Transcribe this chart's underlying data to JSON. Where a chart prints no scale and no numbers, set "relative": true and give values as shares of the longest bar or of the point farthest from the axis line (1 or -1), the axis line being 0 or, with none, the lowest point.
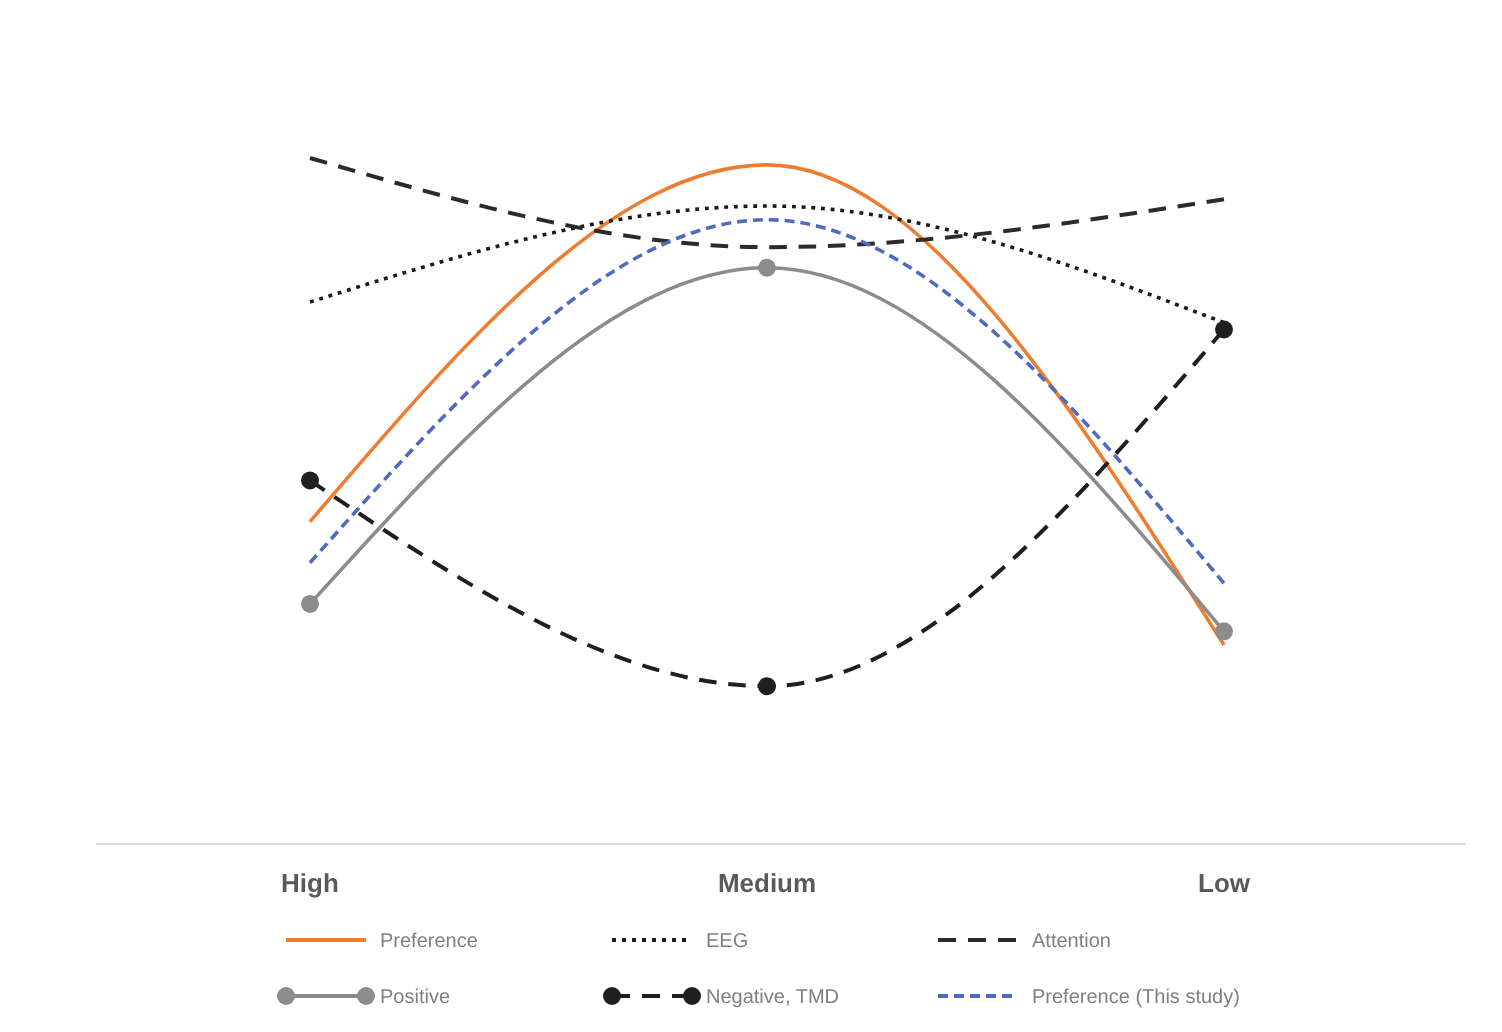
{
  "chart_data": {
    "type": "line",
    "relative": true,
    "categories": [
      "High",
      "Medium",
      "Low"
    ],
    "legend": "bottom",
    "grid": false,
    "series": [
      {
        "name": "Preference",
        "color": "#ed7d31",
        "values": [
          0.47,
          0.99,
          0.29
        ],
        "line_style": "solid",
        "marker": "none"
      },
      {
        "name": "EEG",
        "color": "#1a1a1a",
        "values": [
          0.79,
          0.93,
          0.76
        ],
        "line_style": "dotted",
        "marker": "none"
      },
      {
        "name": "Attention",
        "color": "#2b2b2b",
        "values": [
          1,
          0.87,
          0.94
        ],
        "line_style": "dashed",
        "marker": "none"
      },
      {
        "name": "Positive",
        "color": "#8c8c8c",
        "values": [
          0.35,
          0.84,
          0.31
        ],
        "line_style": "solid",
        "marker": "circle"
      },
      {
        "name": "Negative, TMD",
        "color": "#1f1f1f",
        "values": [
          0.53,
          0.23,
          0.75
        ],
        "line_style": "dashed",
        "marker": "circle"
      },
      {
        "name": "Preference (This study)",
        "color": "#4f6bbf",
        "values": [
          0.41,
          0.91,
          0.38
        ],
        "line_style": "dashed",
        "marker": "none"
      }
    ]
  }
}
